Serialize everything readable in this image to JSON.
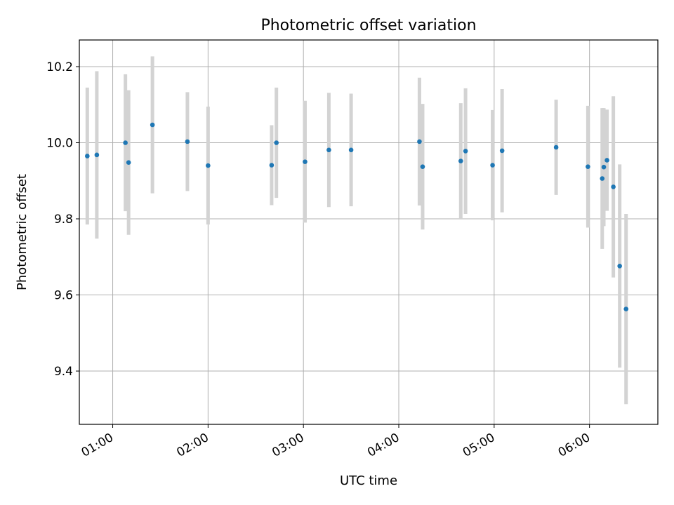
{
  "chart_data": {
    "type": "scatter",
    "title": "Photometric offset variation",
    "xlabel": "UTC time",
    "ylabel": "Photometric offset",
    "x_ticks": [
      "01:00",
      "02:00",
      "03:00",
      "04:00",
      "05:00",
      "06:00"
    ],
    "y_ticks": [
      "9.4",
      "9.6",
      "9.8",
      "10.0",
      "10.2"
    ],
    "xlim": [
      "00:39",
      "06:43"
    ],
    "ylim": [
      9.26,
      10.27
    ],
    "grid": true,
    "marker_color": "#1f77b4",
    "errorbar_color": "#d3d3d3",
    "series": [
      {
        "points": [
          {
            "x": "00:44",
            "y": 9.965,
            "yerr": 0.18
          },
          {
            "x": "00:50",
            "y": 9.968,
            "yerr": 0.22
          },
          {
            "x": "01:08",
            "y": 10.0,
            "yerr": 0.18
          },
          {
            "x": "01:10",
            "y": 9.948,
            "yerr": 0.19
          },
          {
            "x": "01:25",
            "y": 10.047,
            "yerr": 0.18
          },
          {
            "x": "01:47",
            "y": 10.003,
            "yerr": 0.13
          },
          {
            "x": "02:00",
            "y": 9.94,
            "yerr": 0.155
          },
          {
            "x": "02:40",
            "y": 9.941,
            "yerr": 0.105
          },
          {
            "x": "02:43",
            "y": 10.0,
            "yerr": 0.145
          },
          {
            "x": "03:01",
            "y": 9.95,
            "yerr": 0.16
          },
          {
            "x": "03:16",
            "y": 9.981,
            "yerr": 0.15
          },
          {
            "x": "03:30",
            "y": 9.981,
            "yerr": 0.148
          },
          {
            "x": "04:13",
            "y": 10.003,
            "yerr": 0.168
          },
          {
            "x": "04:15",
            "y": 9.937,
            "yerr": 0.165
          },
          {
            "x": "04:39",
            "y": 9.952,
            "yerr": 0.152
          },
          {
            "x": "04:42",
            "y": 9.978,
            "yerr": 0.165
          },
          {
            "x": "04:59",
            "y": 9.941,
            "yerr": 0.145
          },
          {
            "x": "05:05",
            "y": 9.979,
            "yerr": 0.162
          },
          {
            "x": "05:39",
            "y": 9.988,
            "yerr": 0.125
          },
          {
            "x": "05:59",
            "y": 9.937,
            "yerr": 0.16
          },
          {
            "x": "06:08",
            "y": 9.906,
            "yerr": 0.185
          },
          {
            "x": "06:09",
            "y": 9.936,
            "yerr": 0.155
          },
          {
            "x": "06:11",
            "y": 9.954,
            "yerr": 0.133
          },
          {
            "x": "06:15",
            "y": 9.884,
            "yerr": 0.238
          },
          {
            "x": "06:19",
            "y": 9.676,
            "yerr": 0.267
          },
          {
            "x": "06:23",
            "y": 9.563,
            "yerr": 0.25
          }
        ]
      }
    ]
  }
}
